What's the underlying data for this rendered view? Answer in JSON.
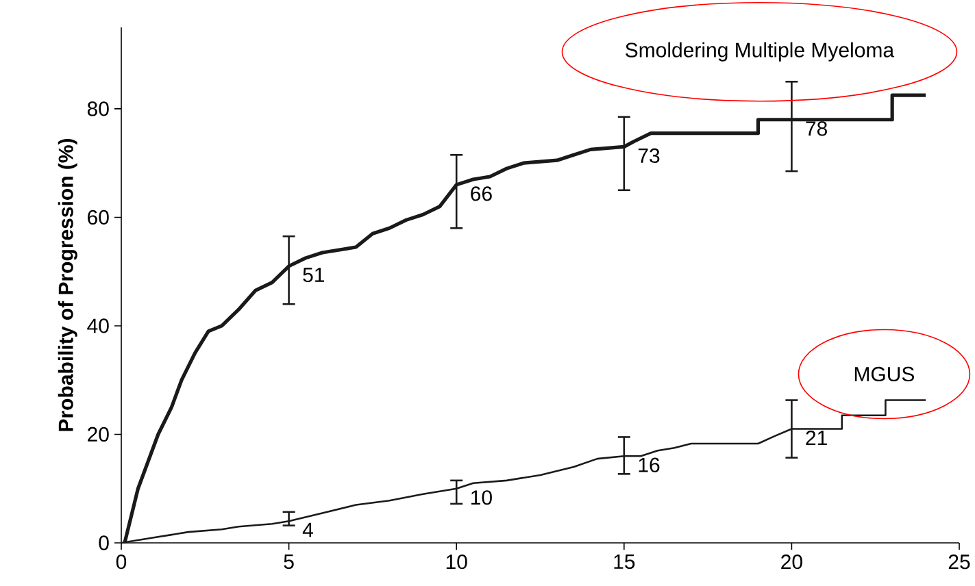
{
  "chart_data": {
    "type": "line",
    "ylabel": "Probability of Progression (%)",
    "xlim": [
      0,
      25
    ],
    "ylim": [
      0,
      95
    ],
    "xticks": [
      0,
      5,
      10,
      15,
      20,
      25
    ],
    "yticks": [
      0,
      20,
      40,
      60,
      80
    ],
    "marker": "none",
    "line_style": "solid",
    "series": [
      {
        "name": "Smoldering Multiple Myeloma",
        "color": "#1a1a1a",
        "x": [
          0.1,
          0.3,
          0.5,
          0.8,
          1.1,
          1.5,
          1.8,
          2.2,
          2.6,
          3,
          3.5,
          4,
          4.5,
          5,
          5.5,
          6,
          7,
          7.5,
          8,
          8.5,
          9,
          9.5,
          10,
          10.5,
          11,
          11.5,
          12,
          13,
          13.5,
          14,
          15,
          15.3,
          15.8,
          19,
          19,
          20,
          23,
          23,
          24
        ],
        "values": [
          0,
          5,
          10,
          15,
          20,
          25,
          30,
          35,
          39,
          40,
          43,
          46.5,
          48,
          51,
          52.5,
          53.5,
          54.5,
          57,
          58,
          59.5,
          60.5,
          62,
          66,
          67,
          67.5,
          69,
          70,
          70.5,
          71.5,
          72.5,
          73,
          74,
          75.5,
          75.5,
          78,
          78,
          78,
          82.5,
          82.5
        ],
        "errors": [
          null,
          null,
          null,
          null,
          null,
          null,
          null,
          null,
          null,
          null,
          null,
          null,
          null,
          [
            44,
            56.5
          ],
          null,
          null,
          null,
          null,
          null,
          null,
          null,
          null,
          [
            58,
            71.5
          ],
          null,
          null,
          null,
          null,
          null,
          null,
          null,
          [
            65,
            78.5
          ],
          null,
          null,
          null,
          null,
          [
            68.5,
            85
          ],
          null,
          null,
          null
        ],
        "value_labels": [
          null,
          null,
          null,
          null,
          null,
          null,
          null,
          null,
          null,
          null,
          null,
          null,
          null,
          "51",
          null,
          null,
          null,
          null,
          null,
          null,
          null,
          null,
          "66",
          null,
          null,
          null,
          null,
          null,
          null,
          null,
          "73",
          null,
          null,
          null,
          null,
          "78",
          null,
          null,
          null
        ]
      },
      {
        "name": "MGUS",
        "color": "#1a1a1a",
        "x": [
          0,
          0.5,
          1,
          1.5,
          2,
          3,
          3.5,
          4.5,
          5,
          6,
          7,
          8,
          9,
          10,
          10.5,
          11.5,
          12.5,
          13.5,
          14.2,
          15,
          15.5,
          16,
          16.5,
          17,
          19,
          19.5,
          20,
          21.5,
          21.5,
          22.8,
          22.8,
          24
        ],
        "values": [
          0,
          0.5,
          1,
          1.5,
          2,
          2.5,
          3,
          3.5,
          4,
          5.5,
          7,
          7.8,
          9,
          10,
          11,
          11.5,
          12.5,
          14,
          15.5,
          16,
          16,
          17,
          17.5,
          18.3,
          18.3,
          19.7,
          21,
          21,
          23.5,
          23.5,
          26.3,
          26.3
        ],
        "errors": [
          null,
          null,
          null,
          null,
          null,
          null,
          null,
          null,
          [
            3.2,
            5.7
          ],
          null,
          null,
          null,
          null,
          [
            7.2,
            11.5
          ],
          null,
          null,
          null,
          null,
          null,
          [
            12.7,
            19.5
          ],
          null,
          null,
          null,
          null,
          null,
          null,
          [
            15.7,
            26.3
          ],
          null,
          null,
          null,
          null,
          null
        ],
        "value_labels": [
          null,
          null,
          null,
          null,
          null,
          null,
          null,
          null,
          "4",
          null,
          null,
          null,
          null,
          "10",
          null,
          null,
          null,
          null,
          null,
          "16",
          null,
          null,
          null,
          null,
          null,
          null,
          "21",
          null,
          null,
          null,
          null,
          null
        ]
      }
    ]
  }
}
